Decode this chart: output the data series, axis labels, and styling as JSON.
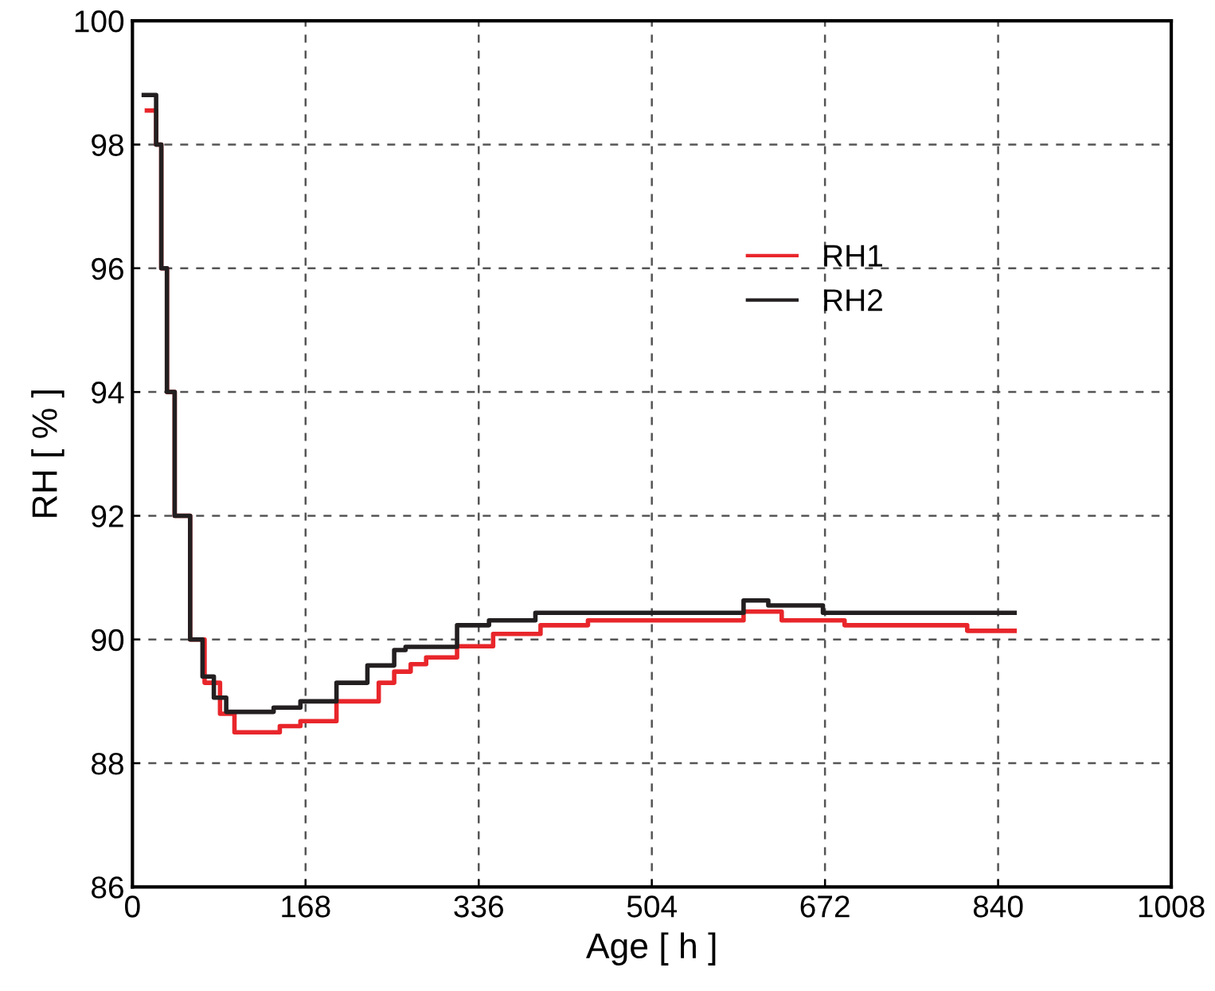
{
  "chart_data": {
    "type": "step",
    "xlabel": "Age [ h ]",
    "ylabel": "RH [ % ]",
    "xlim": [
      0,
      1008
    ],
    "xticks": [
      0,
      168,
      336,
      504,
      672,
      840,
      1008
    ],
    "ylim": [
      86,
      100
    ],
    "yticks": [
      86,
      88,
      90,
      92,
      94,
      96,
      98,
      100
    ],
    "grid": true,
    "legend": "right",
    "line_style": "solid",
    "series": [
      {
        "name": "RH1",
        "color": "#e8262b",
        "x": [
          14,
          20,
          23,
          28,
          33.5,
          41,
          56,
          70,
          85,
          99,
          143,
          163,
          198,
          239,
          254,
          270,
          285,
          315,
          350,
          396,
          442,
          593,
          630,
          691,
          810,
          856
        ],
        "values": [
          98.55,
          98.55,
          98.0,
          96.0,
          94.0,
          92.0,
          90.0,
          89.3,
          88.8,
          88.5,
          88.6,
          88.68,
          89.0,
          89.3,
          89.48,
          89.6,
          89.71,
          89.89,
          90.09,
          90.23,
          90.31,
          90.45,
          90.31,
          90.23,
          90.14,
          90.14
        ]
      },
      {
        "name": "RH2",
        "color": "#231f20",
        "x": [
          11,
          18,
          23,
          28,
          33.5,
          41,
          56,
          68,
          79,
          91,
          137,
          163,
          198,
          228,
          254,
          265,
          315,
          346,
          391,
          593,
          617,
          670,
          856
        ],
        "values": [
          98.8,
          98.8,
          98.0,
          96.0,
          94.0,
          92.0,
          90.0,
          89.4,
          89.06,
          88.83,
          88.9,
          89.0,
          89.3,
          89.58,
          89.83,
          89.88,
          90.23,
          90.31,
          90.43,
          90.63,
          90.55,
          90.43,
          90.43
        ]
      }
    ]
  }
}
